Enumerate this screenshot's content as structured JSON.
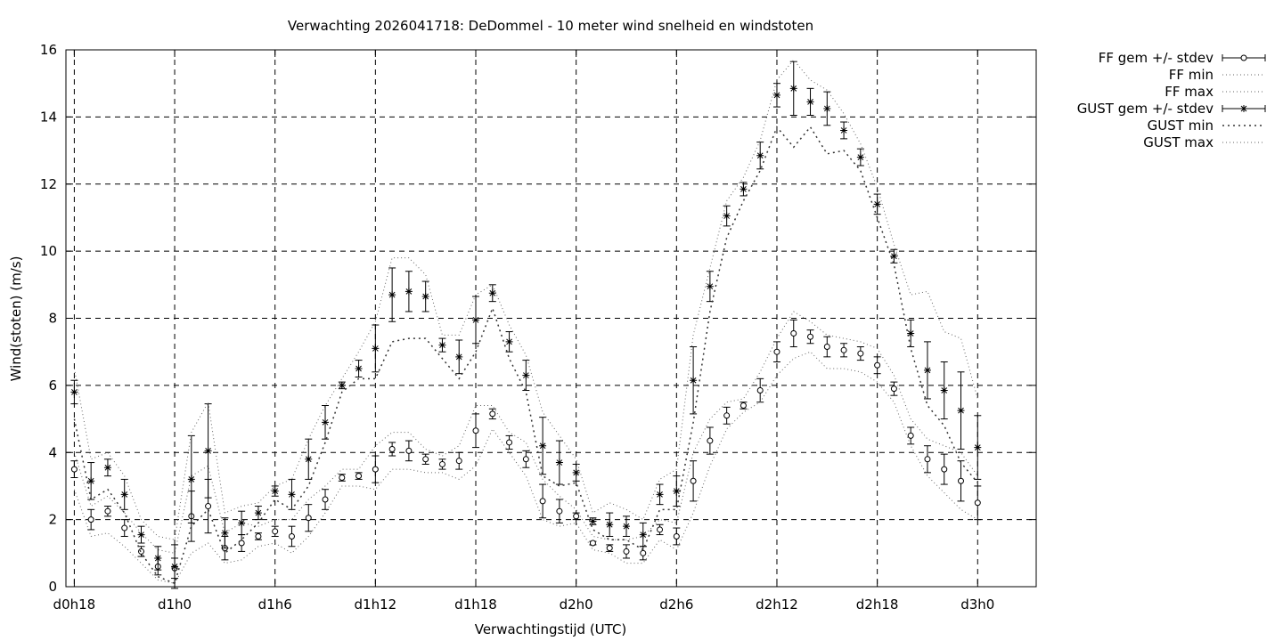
{
  "chart_data": {
    "type": "line",
    "title": "Verwachting 2026041718: DeDommel - 10 meter wind snelheid en windstoten",
    "xlabel": "Verwachtingstijd (UTC)",
    "ylabel": "Wind(stoten) (m/s)",
    "ylim": [
      0,
      16
    ],
    "xlim": [
      -0.5,
      57.5
    ],
    "yticks": [
      0,
      2,
      4,
      6,
      8,
      10,
      12,
      14,
      16
    ],
    "xticks": [
      {
        "x": 0,
        "label": "d0h18"
      },
      {
        "x": 6,
        "label": "d1h0"
      },
      {
        "x": 12,
        "label": "d1h6"
      },
      {
        "x": 18,
        "label": "d1h12"
      },
      {
        "x": 24,
        "label": "d1h18"
      },
      {
        "x": 30,
        "label": "d2h0"
      },
      {
        "x": 36,
        "label": "d2h6"
      },
      {
        "x": 42,
        "label": "d2h12"
      },
      {
        "x": 48,
        "label": "d2h18"
      },
      {
        "x": 54,
        "label": "d3h0"
      }
    ],
    "grid": true,
    "legend_position": "outside-top-right",
    "x_hours": [
      0,
      1,
      2,
      3,
      4,
      5,
      6,
      7,
      8,
      9,
      10,
      11,
      12,
      13,
      14,
      15,
      16,
      17,
      18,
      19,
      20,
      21,
      22,
      23,
      24,
      25,
      26,
      27,
      28,
      29,
      30,
      31,
      32,
      33,
      34,
      35,
      36,
      37,
      38,
      39,
      40,
      41,
      42,
      43,
      44,
      45,
      46,
      47,
      48,
      49,
      50,
      51,
      52,
      53,
      54
    ],
    "series": [
      {
        "name": "FF gem +/- stdev",
        "style": "errorbars-circle",
        "values": [
          3.5,
          2.0,
          2.25,
          1.75,
          1.05,
          0.6,
          0.55,
          2.1,
          2.4,
          1.15,
          1.3,
          1.5,
          1.65,
          1.5,
          2.05,
          2.6,
          3.25,
          3.3,
          3.5,
          4.1,
          4.05,
          3.8,
          3.65,
          3.75,
          4.65,
          5.15,
          4.3,
          3.8,
          2.55,
          2.25,
          2.1,
          1.3,
          1.15,
          1.05,
          1.0,
          1.7,
          1.5,
          3.15,
          4.35,
          5.1,
          5.4,
          5.85,
          7.0,
          7.55,
          7.45,
          7.15,
          7.05,
          6.95,
          6.6,
          5.9,
          4.5,
          3.8,
          3.5,
          3.15,
          2.5
        ],
        "stdev": [
          0.25,
          0.3,
          0.15,
          0.25,
          0.15,
          0.25,
          0.3,
          0.75,
          0.8,
          0.35,
          0.25,
          0.1,
          0.15,
          0.3,
          0.4,
          0.3,
          0.1,
          0.1,
          0.4,
          0.2,
          0.3,
          0.15,
          0.15,
          0.25,
          0.5,
          0.15,
          0.2,
          0.25,
          0.5,
          0.35,
          0.1,
          0.05,
          0.1,
          0.2,
          0.2,
          0.15,
          0.25,
          0.6,
          0.4,
          0.25,
          0.1,
          0.35,
          0.3,
          0.4,
          0.2,
          0.3,
          0.2,
          0.2,
          0.25,
          0.2,
          0.25,
          0.4,
          0.45,
          0.6,
          0.5
        ]
      },
      {
        "name": "FF min",
        "style": "dotted",
        "values": [
          2.9,
          1.5,
          1.6,
          1.2,
          0.7,
          0.2,
          0.1,
          1.0,
          1.3,
          0.7,
          0.8,
          1.2,
          1.3,
          1.0,
          1.5,
          2.2,
          3.0,
          3.0,
          2.9,
          3.5,
          3.5,
          3.4,
          3.4,
          3.2,
          3.6,
          4.7,
          4.0,
          3.3,
          2.0,
          1.8,
          1.9,
          1.1,
          1.0,
          0.7,
          0.7,
          1.4,
          1.1,
          2.2,
          3.6,
          4.7,
          5.2,
          5.5,
          6.3,
          6.8,
          7.0,
          6.5,
          6.5,
          6.4,
          6.1,
          5.5,
          4.2,
          3.3,
          2.8,
          2.3,
          2.0
        ]
      },
      {
        "name": "FF max",
        "style": "dotted",
        "values": [
          4.0,
          2.4,
          2.7,
          2.2,
          1.6,
          1.1,
          1.0,
          3.3,
          3.6,
          1.6,
          1.9,
          1.8,
          2.0,
          2.0,
          2.6,
          3.0,
          3.5,
          3.5,
          4.2,
          4.6,
          4.6,
          4.1,
          3.9,
          4.2,
          5.4,
          5.4,
          4.6,
          4.3,
          3.2,
          2.7,
          2.3,
          1.5,
          1.4,
          1.4,
          1.5,
          2.0,
          1.9,
          4.0,
          5.0,
          5.5,
          5.6,
          6.4,
          7.4,
          8.2,
          7.9,
          7.5,
          7.4,
          7.3,
          7.1,
          6.3,
          5.0,
          4.4,
          4.2,
          4.0,
          3.3
        ]
      },
      {
        "name": "GUST gem +/- stdev",
        "style": "errorbars-star",
        "values": [
          5.8,
          3.15,
          3.55,
          2.75,
          1.55,
          0.85,
          0.6,
          3.2,
          4.05,
          1.6,
          1.9,
          2.2,
          2.85,
          2.75,
          3.8,
          4.9,
          6.0,
          6.5,
          7.1,
          8.7,
          8.8,
          8.65,
          7.2,
          6.85,
          7.95,
          8.75,
          7.3,
          6.3,
          4.2,
          3.7,
          3.4,
          1.95,
          1.85,
          1.8,
          1.55,
          2.75,
          2.85,
          6.15,
          8.95,
          11.05,
          11.85,
          12.85,
          14.65,
          14.85,
          14.45,
          14.25,
          13.6,
          12.8,
          11.4,
          9.85,
          7.55,
          6.45,
          5.85,
          5.25,
          4.15
        ],
        "stdev": [
          0.35,
          0.55,
          0.25,
          0.45,
          0.25,
          0.35,
          0.65,
          1.3,
          1.4,
          0.45,
          0.35,
          0.2,
          0.15,
          0.45,
          0.6,
          0.5,
          0.1,
          0.25,
          0.7,
          0.8,
          0.6,
          0.45,
          0.2,
          0.5,
          0.7,
          0.25,
          0.3,
          0.45,
          0.85,
          0.65,
          0.25,
          0.1,
          0.35,
          0.3,
          0.35,
          0.3,
          0.45,
          1.0,
          0.45,
          0.3,
          0.2,
          0.4,
          0.35,
          0.8,
          0.4,
          0.5,
          0.25,
          0.25,
          0.3,
          0.2,
          0.4,
          0.85,
          0.85,
          1.15,
          0.95
        ]
      },
      {
        "name": "GUST min",
        "style": "dotted-coarse",
        "values": [
          5.0,
          2.6,
          2.9,
          2.2,
          1.0,
          0.3,
          0.1,
          1.8,
          2.3,
          1.0,
          1.4,
          1.9,
          2.6,
          2.3,
          3.0,
          4.3,
          5.8,
          6.2,
          6.2,
          7.3,
          7.4,
          7.4,
          6.8,
          6.2,
          7.0,
          8.3,
          6.8,
          5.8,
          3.3,
          3.0,
          3.1,
          1.7,
          1.4,
          1.4,
          1.1,
          2.3,
          2.3,
          4.9,
          8.2,
          10.4,
          11.5,
          12.4,
          13.7,
          13.1,
          13.7,
          12.9,
          13.0,
          12.4,
          11.0,
          9.6,
          7.1,
          5.4,
          4.8,
          3.7,
          3.1
        ]
      },
      {
        "name": "GUST max",
        "style": "dotted",
        "values": [
          6.5,
          3.8,
          4.0,
          3.3,
          2.0,
          1.5,
          1.4,
          4.6,
          5.5,
          2.2,
          2.4,
          2.5,
          3.0,
          3.2,
          4.4,
          5.4,
          6.2,
          7.0,
          7.9,
          9.8,
          9.8,
          9.3,
          7.5,
          7.5,
          8.7,
          9.0,
          7.8,
          6.9,
          5.2,
          4.5,
          3.8,
          2.2,
          2.5,
          2.3,
          2.0,
          3.2,
          3.5,
          7.5,
          9.5,
          11.5,
          12.2,
          13.3,
          15.1,
          15.7,
          15.1,
          14.8,
          14.1,
          13.2,
          11.9,
          10.2,
          8.7,
          8.8,
          7.6,
          7.4,
          5.6
        ]
      }
    ]
  }
}
